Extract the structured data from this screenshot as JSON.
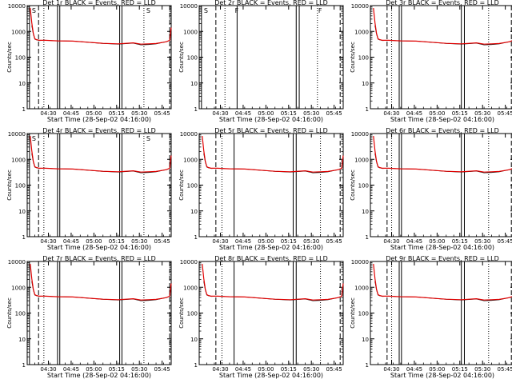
{
  "colors": {
    "events": "#000000",
    "lld": "#e00000",
    "background": "#ffffff"
  },
  "shared_axes": {
    "ylabel": "Counts/sec",
    "xlabel": "Start Time (28-Sep-02 04:16:00)",
    "x_tick_labels": [
      "04:30",
      "04:45",
      "05:00",
      "05:15",
      "05:30",
      "05:45"
    ],
    "x_tick_minutes": [
      14,
      29,
      44,
      59,
      74,
      89
    ],
    "xlim_minutes": [
      0,
      95
    ],
    "y_tick_labels": [
      "1",
      "10",
      "100",
      "1000",
      "10000"
    ],
    "y_tick_values": [
      1,
      10,
      100,
      1000,
      10000
    ],
    "ylim": [
      1,
      10000
    ],
    "yscale": "log"
  },
  "chart_data": [
    {
      "type": "line",
      "title": "Det 1r BLACK = Events, RED = LLD",
      "x": [
        0,
        1,
        2,
        3,
        4,
        5,
        6,
        8,
        12,
        20,
        30,
        40,
        50,
        60,
        70,
        75,
        80,
        85,
        90,
        92,
        94,
        95
      ],
      "series": [
        {
          "name": "Events",
          "values": [
            null,
            null,
            null,
            1700,
            800,
            500,
            470,
            440,
            450,
            430,
            420,
            380,
            340,
            320,
            350,
            300,
            310,
            330,
            380,
            400,
            450,
            1400
          ]
        },
        {
          "name": "LLD",
          "values": [
            null,
            null,
            8000,
            2200,
            850,
            520,
            480,
            450,
            450,
            430,
            420,
            380,
            345,
            330,
            360,
            320,
            330,
            340,
            380,
            400,
            450,
            1400
          ]
        }
      ],
      "corner_labels": [
        "S",
        "",
        "S"
      ],
      "vlines": [
        {
          "x": 1.5,
          "style": "solid"
        },
        {
          "x": 7.5,
          "style": "dashed"
        },
        {
          "x": 11,
          "style": "dotted"
        },
        {
          "x": 20,
          "style": "solid"
        },
        {
          "x": 21.5,
          "style": "solid"
        },
        {
          "x": 61,
          "style": "solid"
        },
        {
          "x": 62.5,
          "style": "solid"
        },
        {
          "x": 77,
          "style": "dotted"
        },
        {
          "x": 94,
          "style": "dashed"
        }
      ]
    },
    {
      "type": "line",
      "title": "Det 2r BLACK = Events, RED = LLD",
      "x": [],
      "series": [],
      "corner_labels": [
        "S",
        "F",
        "F"
      ],
      "vlines": [
        {
          "x": 1.5,
          "style": "solid"
        },
        {
          "x": 11,
          "style": "dashed"
        },
        {
          "x": 17,
          "style": "dotted"
        },
        {
          "x": 25,
          "style": "solid"
        },
        {
          "x": 64,
          "style": "solid"
        },
        {
          "x": 66,
          "style": "solid"
        },
        {
          "x": 78,
          "style": "dotted"
        },
        {
          "x": 93,
          "style": "dashed"
        }
      ]
    },
    {
      "type": "line",
      "title": "Det 3r BLACK = Events, RED = LLD",
      "x": [
        0,
        1,
        2,
        3,
        4,
        5,
        6,
        8,
        12,
        20,
        30,
        40,
        50,
        60,
        70,
        75,
        80,
        85,
        90,
        92,
        94,
        95
      ],
      "series": [
        {
          "name": "Events",
          "values": [
            null,
            null,
            null,
            1700,
            800,
            500,
            470,
            440,
            450,
            430,
            420,
            380,
            340,
            320,
            350,
            300,
            310,
            330,
            380,
            400,
            450,
            1400
          ]
        },
        {
          "name": "LLD",
          "values": [
            null,
            null,
            8000,
            2200,
            850,
            520,
            480,
            450,
            450,
            430,
            420,
            380,
            345,
            330,
            360,
            320,
            330,
            340,
            380,
            400,
            450,
            1400
          ]
        }
      ],
      "corner_labels": [
        "",
        "",
        ""
      ],
      "vlines": [
        {
          "x": 11,
          "style": "dashed"
        },
        {
          "x": 14,
          "style": "dotted"
        },
        {
          "x": 19,
          "style": "solid"
        },
        {
          "x": 20.5,
          "style": "solid"
        },
        {
          "x": 60,
          "style": "solid"
        },
        {
          "x": 62,
          "style": "solid"
        },
        {
          "x": 78,
          "style": "dotted"
        },
        {
          "x": 93,
          "style": "dashed"
        }
      ]
    },
    {
      "type": "line",
      "title": "Det 4r BLACK = Events, RED = LLD",
      "x": [
        0,
        1,
        2,
        3,
        4,
        5,
        6,
        8,
        12,
        20,
        30,
        40,
        50,
        60,
        70,
        75,
        80,
        85,
        90,
        92,
        94,
        95
      ],
      "series": [
        {
          "name": "Events",
          "values": [
            null,
            null,
            null,
            1700,
            800,
            500,
            470,
            440,
            450,
            430,
            420,
            380,
            340,
            320,
            350,
            300,
            310,
            330,
            380,
            400,
            450,
            1400
          ]
        },
        {
          "name": "LLD",
          "values": [
            null,
            null,
            8000,
            2200,
            850,
            520,
            480,
            450,
            450,
            430,
            420,
            380,
            345,
            330,
            360,
            320,
            330,
            340,
            380,
            400,
            450,
            1400
          ]
        }
      ],
      "corner_labels": [
        "S",
        "",
        "S"
      ],
      "vlines": [
        {
          "x": 1.5,
          "style": "solid"
        },
        {
          "x": 7.5,
          "style": "dashed"
        },
        {
          "x": 11,
          "style": "dotted"
        },
        {
          "x": 20,
          "style": "solid"
        },
        {
          "x": 21.5,
          "style": "solid"
        },
        {
          "x": 61,
          "style": "solid"
        },
        {
          "x": 62.5,
          "style": "solid"
        },
        {
          "x": 77,
          "style": "dotted"
        },
        {
          "x": 94,
          "style": "dashed"
        }
      ]
    },
    {
      "type": "line",
      "title": "Det 5r BLACK = Events, RED = LLD",
      "x": [
        0,
        1,
        2,
        3,
        4,
        5,
        6,
        8,
        12,
        20,
        30,
        40,
        50,
        60,
        70,
        75,
        80,
        85,
        90,
        92,
        94,
        95
      ],
      "series": [
        {
          "name": "Events",
          "values": [
            null,
            null,
            null,
            1700,
            800,
            500,
            470,
            440,
            450,
            430,
            420,
            380,
            340,
            320,
            350,
            300,
            310,
            330,
            380,
            400,
            450,
            1400
          ]
        },
        {
          "name": "LLD",
          "values": [
            null,
            null,
            8000,
            2200,
            850,
            520,
            480,
            450,
            450,
            430,
            420,
            380,
            345,
            330,
            360,
            320,
            330,
            340,
            380,
            400,
            450,
            1400
          ]
        }
      ],
      "corner_labels": [
        "",
        "",
        ""
      ],
      "vlines": [
        {
          "x": 11,
          "style": "dashed"
        },
        {
          "x": 15,
          "style": "dotted"
        },
        {
          "x": 23,
          "style": "solid"
        },
        {
          "x": 62,
          "style": "solid"
        },
        {
          "x": 64,
          "style": "solid"
        },
        {
          "x": 80,
          "style": "dotted"
        },
        {
          "x": 93,
          "style": "dashed"
        }
      ]
    },
    {
      "type": "line",
      "title": "Det 6r BLACK = Events, RED = LLD",
      "x": [
        0,
        1,
        2,
        3,
        4,
        5,
        6,
        8,
        12,
        20,
        30,
        40,
        50,
        60,
        70,
        75,
        80,
        85,
        90,
        92,
        94,
        95
      ],
      "series": [
        {
          "name": "Events",
          "values": [
            null,
            null,
            null,
            1700,
            800,
            500,
            470,
            440,
            450,
            430,
            420,
            380,
            340,
            320,
            350,
            300,
            310,
            330,
            380,
            400,
            450,
            1400
          ]
        },
        {
          "name": "LLD",
          "values": [
            null,
            null,
            8000,
            2200,
            850,
            520,
            480,
            450,
            450,
            430,
            420,
            380,
            345,
            330,
            360,
            320,
            330,
            340,
            380,
            400,
            450,
            1400
          ]
        }
      ],
      "corner_labels": [
        "",
        "",
        ""
      ],
      "vlines": [
        {
          "x": 11,
          "style": "dashed"
        },
        {
          "x": 14,
          "style": "dotted"
        },
        {
          "x": 19,
          "style": "solid"
        },
        {
          "x": 20.5,
          "style": "solid"
        },
        {
          "x": 60,
          "style": "solid"
        },
        {
          "x": 62,
          "style": "solid"
        },
        {
          "x": 78,
          "style": "dotted"
        },
        {
          "x": 93,
          "style": "dashed"
        }
      ]
    },
    {
      "type": "line",
      "title": "Det 7r BLACK = Events, RED = LLD",
      "x": [
        0,
        1,
        2,
        3,
        4,
        5,
        6,
        8,
        12,
        20,
        30,
        40,
        50,
        60,
        70,
        75,
        80,
        85,
        90,
        92,
        94,
        95
      ],
      "series": [
        {
          "name": "Events",
          "values": [
            null,
            null,
            null,
            1700,
            800,
            500,
            470,
            440,
            450,
            430,
            420,
            380,
            340,
            320,
            350,
            300,
            310,
            330,
            380,
            400,
            450,
            1400
          ]
        },
        {
          "name": "LLD",
          "values": [
            null,
            null,
            8000,
            2200,
            850,
            520,
            480,
            450,
            450,
            430,
            420,
            380,
            345,
            330,
            360,
            320,
            330,
            340,
            380,
            400,
            450,
            1400
          ]
        }
      ],
      "corner_labels": [
        "",
        "",
        ""
      ],
      "vlines": [
        {
          "x": 1.5,
          "style": "solid"
        },
        {
          "x": 7.5,
          "style": "dashed"
        },
        {
          "x": 11,
          "style": "dotted"
        },
        {
          "x": 20,
          "style": "solid"
        },
        {
          "x": 21.5,
          "style": "solid"
        },
        {
          "x": 61,
          "style": "solid"
        },
        {
          "x": 62.5,
          "style": "solid"
        },
        {
          "x": 77,
          "style": "dotted"
        },
        {
          "x": 94,
          "style": "dashed"
        }
      ]
    },
    {
      "type": "line",
      "title": "Det 8r BLACK = Events, RED = LLD",
      "x": [
        0,
        1,
        2,
        3,
        4,
        5,
        6,
        8,
        12,
        20,
        30,
        40,
        50,
        60,
        70,
        75,
        80,
        85,
        90,
        92,
        94,
        95
      ],
      "series": [
        {
          "name": "Events",
          "values": [
            null,
            null,
            null,
            1700,
            800,
            500,
            470,
            440,
            450,
            430,
            420,
            380,
            340,
            320,
            350,
            300,
            310,
            330,
            380,
            400,
            450,
            1400
          ]
        },
        {
          "name": "LLD",
          "values": [
            null,
            null,
            8000,
            2200,
            850,
            520,
            480,
            450,
            450,
            430,
            420,
            380,
            345,
            330,
            360,
            320,
            330,
            340,
            380,
            400,
            450,
            1400
          ]
        }
      ],
      "corner_labels": [
        "",
        "",
        ""
      ],
      "vlines": [
        {
          "x": 11,
          "style": "dashed"
        },
        {
          "x": 15,
          "style": "dotted"
        },
        {
          "x": 23,
          "style": "solid"
        },
        {
          "x": 62,
          "style": "solid"
        },
        {
          "x": 64,
          "style": "solid"
        },
        {
          "x": 80,
          "style": "dotted"
        },
        {
          "x": 93,
          "style": "dashed"
        }
      ]
    },
    {
      "type": "line",
      "title": "Det 9r BLACK = Events, RED = LLD",
      "x": [
        0,
        1,
        2,
        3,
        4,
        5,
        6,
        8,
        12,
        20,
        30,
        40,
        50,
        60,
        70,
        75,
        80,
        85,
        90,
        92,
        94,
        95
      ],
      "series": [
        {
          "name": "Events",
          "values": [
            null,
            null,
            null,
            1700,
            800,
            500,
            470,
            440,
            450,
            430,
            420,
            380,
            340,
            320,
            350,
            300,
            310,
            330,
            380,
            400,
            450,
            1400
          ]
        },
        {
          "name": "LLD",
          "values": [
            null,
            null,
            8000,
            2200,
            850,
            520,
            480,
            450,
            450,
            430,
            420,
            380,
            345,
            330,
            360,
            320,
            330,
            340,
            380,
            400,
            450,
            1400
          ]
        }
      ],
      "corner_labels": [
        "",
        "",
        ""
      ],
      "vlines": [
        {
          "x": 11,
          "style": "dashed"
        },
        {
          "x": 14,
          "style": "dotted"
        },
        {
          "x": 19,
          "style": "solid"
        },
        {
          "x": 20.5,
          "style": "solid"
        },
        {
          "x": 60,
          "style": "solid"
        },
        {
          "x": 62,
          "style": "solid"
        },
        {
          "x": 78,
          "style": "dotted"
        },
        {
          "x": 93,
          "style": "dashed"
        }
      ]
    }
  ]
}
